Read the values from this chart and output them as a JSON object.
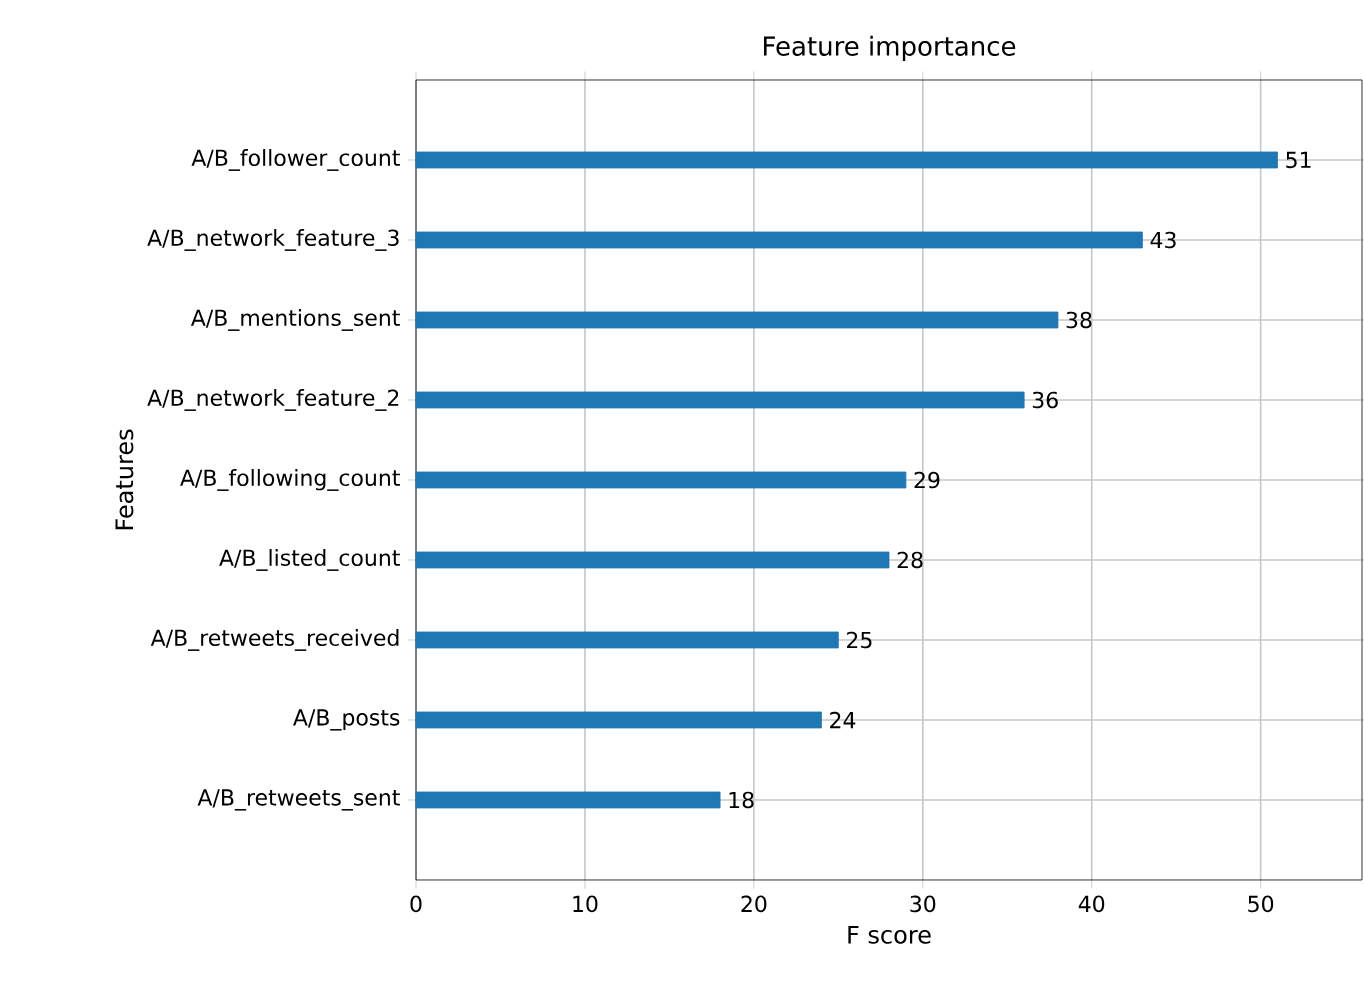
{
  "chart_data": {
    "type": "bar",
    "orientation": "horizontal",
    "title": "Feature importance",
    "xlabel": "F score",
    "ylabel": "Features",
    "categories": [
      "A/B_follower_count",
      "A/B_network_feature_3",
      "A/B_mentions_sent",
      "A/B_network_feature_2",
      "A/B_following_count",
      "A/B_listed_count",
      "A/B_retweets_received",
      "A/B_posts",
      "A/B_retweets_sent"
    ],
    "values": [
      51,
      43,
      38,
      36,
      29,
      28,
      25,
      24,
      18
    ],
    "color": "#1f77b4",
    "xlim": [
      0,
      56
    ],
    "xticks": [
      0,
      10,
      20,
      30,
      40,
      50
    ],
    "grid": true,
    "data_labels": true
  }
}
